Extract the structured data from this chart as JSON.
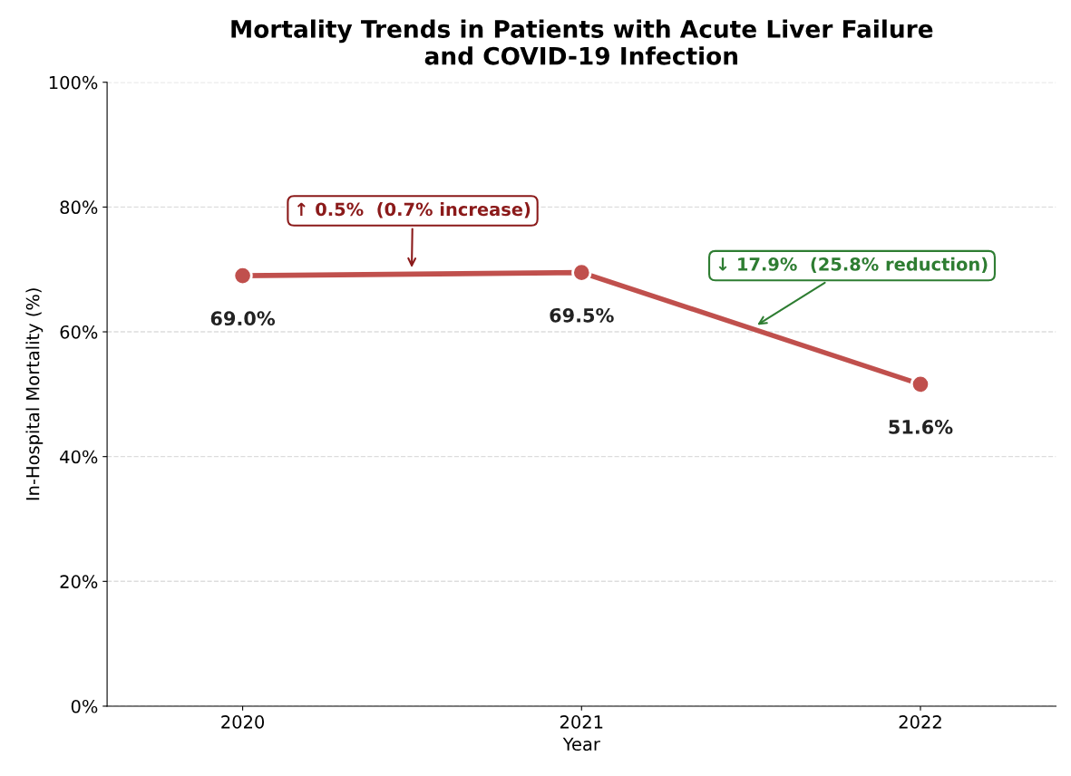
{
  "chart_data": {
    "type": "line",
    "title": "Mortality Trends in Patients with Acute Liver Failure\nand COVID-19 Infection",
    "xlabel": "Year",
    "ylabel": "In-Hospital Mortality (%)",
    "x": [
      2020,
      2021,
      2022
    ],
    "xlim": [
      2019.6,
      2022.4
    ],
    "xticks": [
      2020,
      2021,
      2022
    ],
    "series": [
      {
        "color": "#c0504d",
        "values": [
          69.0,
          69.5,
          51.6
        ],
        "value_labels": [
          "69.0%",
          "69.5%",
          "51.6%"
        ]
      }
    ],
    "ylim": [
      0,
      100
    ],
    "yticks": [
      {
        "value": 0,
        "label": "0%"
      },
      {
        "value": 20,
        "label": "20%"
      },
      {
        "value": 40,
        "label": "40%"
      },
      {
        "value": 60,
        "label": "60%"
      },
      {
        "value": 80,
        "label": "80%"
      },
      {
        "value": 100,
        "label": "100%"
      }
    ],
    "grid": "y",
    "marker": "circle",
    "line_style": "solid",
    "annotations": [
      "↑ 0.5%  (0.7% increase)",
      "↓ 17.9%  (25.8% reduction)"
    ]
  }
}
